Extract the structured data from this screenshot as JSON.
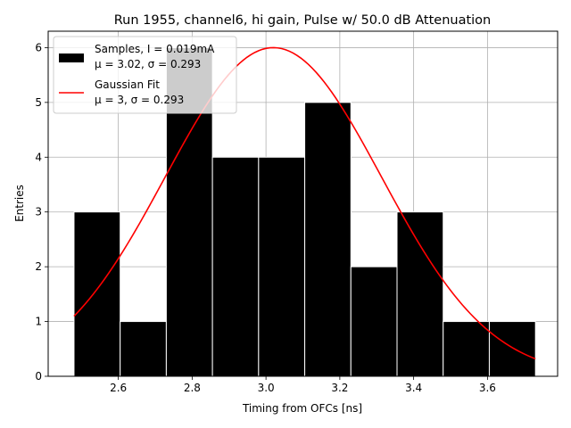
{
  "chart_data": {
    "type": "bar",
    "title": "Run 1955, channel6, hi gain, Pulse w/ 50.0 dB Attenuation",
    "xlabel": "Timing from OFCs [ns]",
    "ylabel": "Entries",
    "xlim": [
      2.41,
      3.79
    ],
    "ylim": [
      0,
      6.3
    ],
    "xticks": [
      "2.6",
      "2.8",
      "3.0",
      "3.2",
      "3.4",
      "3.6"
    ],
    "yticks": [
      "0",
      "1",
      "2",
      "3",
      "4",
      "5",
      "6"
    ],
    "grid": true,
    "legend_position": "top-left",
    "bin_edges": [
      2.48,
      2.605,
      2.73,
      2.855,
      2.98,
      3.105,
      3.23,
      3.355,
      3.48,
      3.605,
      3.73
    ],
    "values": [
      3,
      1,
      6,
      4,
      4,
      5,
      2,
      3,
      1,
      1
    ],
    "series": [
      {
        "name": "Samples, I = 0.019mA",
        "stats": "μ = 3.02, σ = 0.293",
        "type": "histogram",
        "color": "#000000"
      },
      {
        "name": "Gaussian Fit",
        "stats": "μ = 3, σ = 0.293",
        "type": "line",
        "color": "#ff0000",
        "fit": {
          "amplitude": 6.0,
          "mu": 3.02,
          "sigma": 0.293,
          "x_start": 2.48,
          "x_end": 3.73
        }
      }
    ]
  }
}
